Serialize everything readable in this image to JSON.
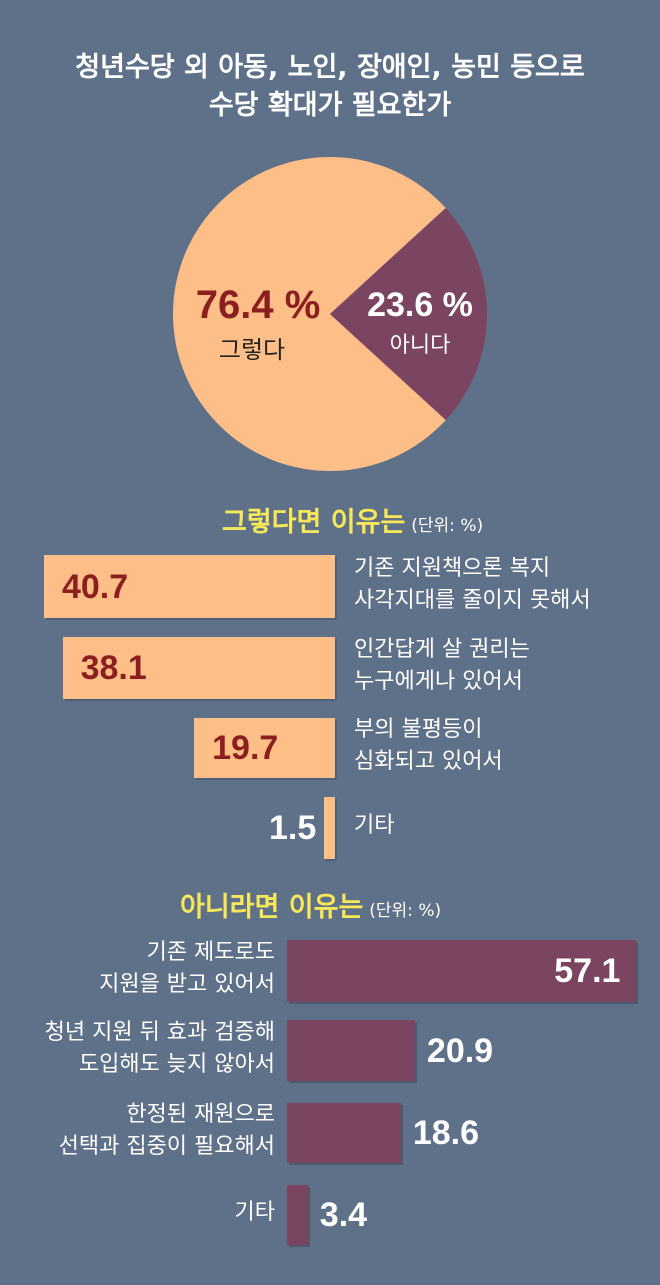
{
  "title_line1": "청년수당 외 아동, 노인, 장애인, 농민 등으로",
  "title_line2": "수당 확대가 필요한가",
  "colors": {
    "background": "#5f7189",
    "yes": "#fdbe88",
    "no": "#7b4562",
    "yes_text": "#8b1e1e",
    "section_title": "#f7e85a"
  },
  "chart_data": [
    {
      "type": "pie",
      "title": "청년수당 외 아동, 노인, 장애인, 농민 등으로 수당 확대가 필요한가",
      "slices": [
        {
          "label": "그렇다",
          "value": 76.4,
          "value_text": "76.4 %"
        },
        {
          "label": "아니다",
          "value": 23.6,
          "value_text": "23.6 %"
        }
      ]
    },
    {
      "type": "bar",
      "title": "그렇다면 이유는",
      "unit": "(단위: %)",
      "categories": [
        [
          "기존 지원책으론 복지",
          "사각지대를 줄이지 못해서"
        ],
        [
          "인간답게 살 권리는",
          "누구에게나 있어서"
        ],
        [
          "부의 불평등이",
          "심화되고 있어서"
        ],
        [
          "기타"
        ]
      ],
      "values": [
        40.7,
        38.1,
        19.7,
        1.5
      ]
    },
    {
      "type": "bar",
      "title": "아니라면 이유는",
      "unit": "(단위: %)",
      "categories": [
        [
          "기존 제도로도",
          "지원을 받고 있어서"
        ],
        [
          "청년 지원 뒤 효과 검증해",
          "도입해도 늦지 않아서"
        ],
        [
          "한정된 재원으로",
          "선택과 집중이 필요해서"
        ],
        [
          "기타"
        ]
      ],
      "values": [
        57.1,
        20.9,
        18.6,
        3.4
      ]
    }
  ]
}
